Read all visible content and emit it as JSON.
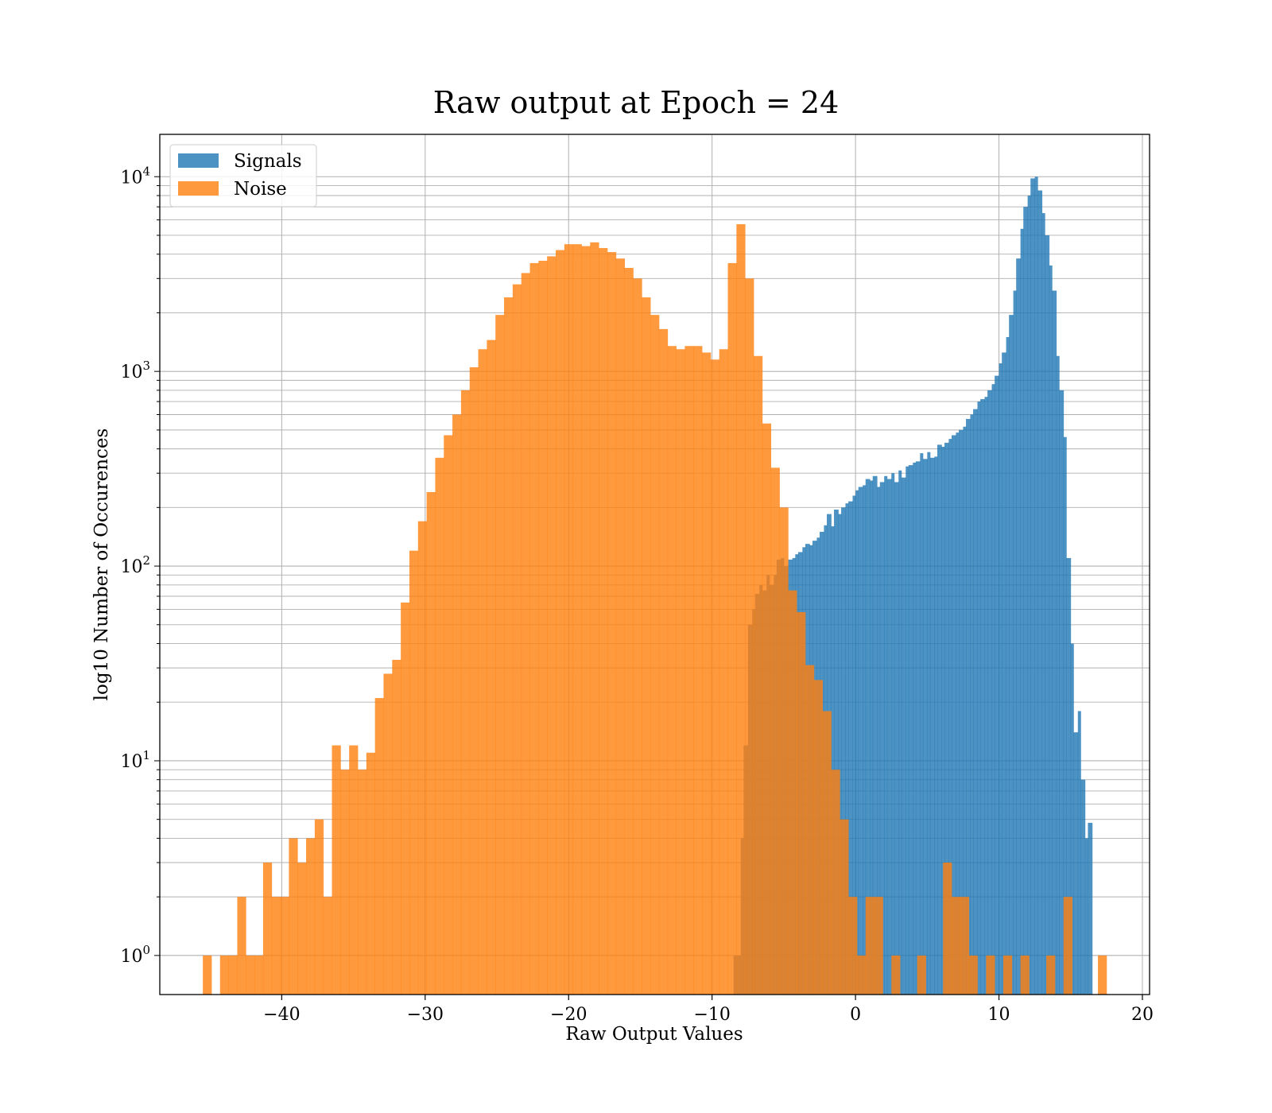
{
  "chart_data": {
    "type": "histogram",
    "title": "Raw output at Epoch = 24",
    "xlabel": "Raw Output Values",
    "ylabel": "log10 Number of Occurences",
    "xlim": [
      -48.5,
      20.5
    ],
    "ylim": [
      0.63,
      16500
    ],
    "yscale": "log",
    "grid": true,
    "legend_position": "upper-left",
    "x_ticks": [
      -40,
      -30,
      -20,
      -10,
      0,
      10,
      20
    ],
    "x_tick_labels": [
      "−40",
      "−30",
      "−20",
      "−10",
      "0",
      "10",
      "20"
    ],
    "y_ticks": [
      {
        "value": 1,
        "base": "10",
        "exp": "0"
      },
      {
        "value": 10,
        "base": "10",
        "exp": "1"
      },
      {
        "value": 100,
        "base": "10",
        "exp": "2"
      },
      {
        "value": 1000,
        "base": "10",
        "exp": "3"
      },
      {
        "value": 10000,
        "base": "10",
        "exp": "4"
      }
    ],
    "series": [
      {
        "name": "Signals",
        "color": "#1f77b4",
        "opacity": 0.8,
        "bins": [
          [
            -8.5,
            -8.0,
            1
          ],
          [
            -8.0,
            -7.8,
            4
          ],
          [
            -7.8,
            -7.5,
            12
          ],
          [
            -7.5,
            -7.2,
            50
          ],
          [
            -7.2,
            -7.0,
            60
          ],
          [
            -7.0,
            -6.7,
            72
          ],
          [
            -6.7,
            -6.5,
            80
          ],
          [
            -6.5,
            -6.2,
            75
          ],
          [
            -6.2,
            -6.0,
            90
          ],
          [
            -6.0,
            -5.7,
            80
          ],
          [
            -5.7,
            -5.5,
            90
          ],
          [
            -5.5,
            -5.2,
            108
          ],
          [
            -5.2,
            -5.0,
            110
          ],
          [
            -5.0,
            -4.7,
            100
          ],
          [
            -4.7,
            -4.4,
            108
          ],
          [
            -4.4,
            -4.2,
            110
          ],
          [
            -4.2,
            -4.0,
            115
          ],
          [
            -4.0,
            -3.7,
            118
          ],
          [
            -3.7,
            -3.5,
            125
          ],
          [
            -3.5,
            -3.2,
            130
          ],
          [
            -3.2,
            -3.0,
            128
          ],
          [
            -3.0,
            -2.7,
            135
          ],
          [
            -2.7,
            -2.5,
            140
          ],
          [
            -2.5,
            -2.2,
            150
          ],
          [
            -2.2,
            -2.0,
            162
          ],
          [
            -2.0,
            -1.7,
            185
          ],
          [
            -1.7,
            -1.5,
            160
          ],
          [
            -1.5,
            -1.2,
            195
          ],
          [
            -1.2,
            -1.0,
            185
          ],
          [
            -1.0,
            -0.7,
            200
          ],
          [
            -0.7,
            -0.5,
            210
          ],
          [
            -0.5,
            -0.2,
            215
          ],
          [
            -0.2,
            0.0,
            230
          ],
          [
            0.0,
            0.2,
            245
          ],
          [
            0.2,
            0.5,
            255
          ],
          [
            0.5,
            0.7,
            260
          ],
          [
            0.7,
            1.0,
            280
          ],
          [
            1.0,
            1.2,
            275
          ],
          [
            1.2,
            1.5,
            290
          ],
          [
            1.5,
            1.7,
            255
          ],
          [
            1.7,
            2.0,
            270
          ],
          [
            2.0,
            2.2,
            290
          ],
          [
            2.2,
            2.5,
            280
          ],
          [
            2.5,
            2.7,
            300
          ],
          [
            2.7,
            3.0,
            270
          ],
          [
            3.0,
            3.2,
            310
          ],
          [
            3.2,
            3.5,
            285
          ],
          [
            3.5,
            3.7,
            325
          ],
          [
            3.7,
            4.0,
            330
          ],
          [
            4.0,
            4.2,
            340
          ],
          [
            4.2,
            4.5,
            345
          ],
          [
            4.5,
            4.7,
            380
          ],
          [
            4.7,
            5.0,
            355
          ],
          [
            5.0,
            5.2,
            385
          ],
          [
            5.2,
            5.5,
            360
          ],
          [
            5.5,
            5.7,
            365
          ],
          [
            5.7,
            6.0,
            420
          ],
          [
            6.0,
            6.2,
            410
          ],
          [
            6.2,
            6.5,
            430
          ],
          [
            6.5,
            6.7,
            450
          ],
          [
            6.7,
            7.0,
            470
          ],
          [
            7.0,
            7.2,
            485
          ],
          [
            7.2,
            7.5,
            500
          ],
          [
            7.5,
            7.7,
            520
          ],
          [
            7.7,
            8.0,
            570
          ],
          [
            8.0,
            8.2,
            600
          ],
          [
            8.2,
            8.5,
            640
          ],
          [
            8.5,
            8.7,
            700
          ],
          [
            8.7,
            9.0,
            720
          ],
          [
            9.0,
            9.2,
            740
          ],
          [
            9.2,
            9.5,
            800
          ],
          [
            9.5,
            9.7,
            860
          ],
          [
            9.7,
            10.0,
            950
          ],
          [
            10.0,
            10.2,
            1100
          ],
          [
            10.2,
            10.5,
            1250
          ],
          [
            10.5,
            10.7,
            1500
          ],
          [
            10.7,
            11.0,
            1950
          ],
          [
            11.0,
            11.2,
            2600
          ],
          [
            11.2,
            11.5,
            3800
          ],
          [
            11.5,
            11.7,
            5400
          ],
          [
            11.7,
            12.0,
            7000
          ],
          [
            12.0,
            12.2,
            8000
          ],
          [
            12.2,
            12.5,
            9800
          ],
          [
            12.5,
            12.7,
            10000
          ],
          [
            12.7,
            13.0,
            8500
          ],
          [
            13.0,
            13.2,
            6500
          ],
          [
            13.2,
            13.5,
            5000
          ],
          [
            13.5,
            13.7,
            3500
          ],
          [
            13.7,
            14.0,
            2600
          ],
          [
            14.0,
            14.2,
            1200
          ],
          [
            14.2,
            14.5,
            800
          ],
          [
            14.5,
            14.7,
            460
          ],
          [
            14.7,
            15.0,
            110
          ],
          [
            15.0,
            15.2,
            40
          ],
          [
            15.2,
            15.5,
            14
          ],
          [
            15.5,
            15.7,
            18
          ],
          [
            15.7,
            16.0,
            8
          ],
          [
            16.0,
            16.2,
            4
          ],
          [
            16.2,
            16.5,
            4.8
          ]
        ]
      },
      {
        "name": "Noise",
        "color": "#ff7f0e",
        "opacity": 0.8,
        "bins": [
          [
            -45.5,
            -44.9,
            1
          ],
          [
            -44.9,
            -44.3,
            0
          ],
          [
            -44.3,
            -43.7,
            1
          ],
          [
            -43.7,
            -43.1,
            1
          ],
          [
            -43.1,
            -42.5,
            2
          ],
          [
            -42.5,
            -41.9,
            1
          ],
          [
            -41.9,
            -41.3,
            1
          ],
          [
            -41.3,
            -40.7,
            3
          ],
          [
            -40.7,
            -40.1,
            2
          ],
          [
            -40.1,
            -39.5,
            2
          ],
          [
            -39.5,
            -38.9,
            4
          ],
          [
            -38.9,
            -38.3,
            3
          ],
          [
            -38.3,
            -37.7,
            4
          ],
          [
            -37.7,
            -37.1,
            5
          ],
          [
            -37.1,
            -36.5,
            2
          ],
          [
            -36.5,
            -35.9,
            12
          ],
          [
            -35.9,
            -35.3,
            9
          ],
          [
            -35.3,
            -34.7,
            12
          ],
          [
            -34.7,
            -34.1,
            9
          ],
          [
            -34.1,
            -33.5,
            11
          ],
          [
            -33.5,
            -32.9,
            21
          ],
          [
            -32.9,
            -32.3,
            28
          ],
          [
            -32.3,
            -31.7,
            33
          ],
          [
            -31.7,
            -31.1,
            65
          ],
          [
            -31.1,
            -30.5,
            120
          ],
          [
            -30.5,
            -29.9,
            170
          ],
          [
            -29.9,
            -29.3,
            240
          ],
          [
            -29.3,
            -28.7,
            360
          ],
          [
            -28.7,
            -28.1,
            470
          ],
          [
            -28.1,
            -27.5,
            600
          ],
          [
            -27.5,
            -26.9,
            800
          ],
          [
            -26.9,
            -26.3,
            1050
          ],
          [
            -26.3,
            -25.7,
            1300
          ],
          [
            -25.7,
            -25.1,
            1450
          ],
          [
            -25.1,
            -24.5,
            1950
          ],
          [
            -24.5,
            -23.9,
            2400
          ],
          [
            -23.9,
            -23.3,
            2800
          ],
          [
            -23.3,
            -22.7,
            3200
          ],
          [
            -22.7,
            -22.1,
            3600
          ],
          [
            -22.1,
            -21.5,
            3700
          ],
          [
            -21.5,
            -20.9,
            3900
          ],
          [
            -20.9,
            -20.3,
            4200
          ],
          [
            -20.3,
            -19.7,
            4500
          ],
          [
            -19.7,
            -19.1,
            4500
          ],
          [
            -19.1,
            -18.5,
            4400
          ],
          [
            -18.5,
            -17.9,
            4600
          ],
          [
            -17.9,
            -17.3,
            4300
          ],
          [
            -17.3,
            -16.7,
            4100
          ],
          [
            -16.7,
            -16.1,
            3800
          ],
          [
            -16.1,
            -15.5,
            3400
          ],
          [
            -15.5,
            -14.9,
            3000
          ],
          [
            -14.9,
            -14.3,
            2400
          ],
          [
            -14.3,
            -13.7,
            1950
          ],
          [
            -13.7,
            -13.1,
            1650
          ],
          [
            -13.1,
            -12.5,
            1350
          ],
          [
            -12.5,
            -11.9,
            1300
          ],
          [
            -11.9,
            -11.3,
            1350
          ],
          [
            -11.3,
            -10.7,
            1350
          ],
          [
            -10.7,
            -10.1,
            1250
          ],
          [
            -10.1,
            -9.5,
            1150
          ],
          [
            -9.5,
            -8.9,
            1300
          ],
          [
            -8.9,
            -8.3,
            3600
          ],
          [
            -8.3,
            -7.7,
            5700
          ],
          [
            -7.7,
            -7.1,
            3000
          ],
          [
            -7.1,
            -6.5,
            1200
          ],
          [
            -6.5,
            -5.9,
            540
          ],
          [
            -5.9,
            -5.3,
            320
          ],
          [
            -5.3,
            -4.7,
            200
          ],
          [
            -4.7,
            -4.1,
            75
          ],
          [
            -4.1,
            -3.5,
            58
          ],
          [
            -3.5,
            -2.9,
            31
          ],
          [
            -2.9,
            -2.3,
            26
          ],
          [
            -2.3,
            -1.7,
            18
          ],
          [
            -1.7,
            -1.1,
            9
          ],
          [
            -1.1,
            -0.5,
            5
          ],
          [
            -0.5,
            0.1,
            2
          ],
          [
            0.1,
            0.7,
            1
          ],
          [
            0.7,
            1.3,
            2
          ],
          [
            1.3,
            1.9,
            2
          ],
          [
            1.9,
            2.5,
            0
          ],
          [
            2.5,
            3.1,
            1
          ],
          [
            3.1,
            3.7,
            0
          ],
          [
            3.7,
            4.3,
            0
          ],
          [
            4.3,
            4.9,
            1
          ],
          [
            4.9,
            5.5,
            0
          ],
          [
            5.5,
            6.1,
            0
          ],
          [
            6.1,
            6.7,
            3
          ],
          [
            6.7,
            7.3,
            2
          ],
          [
            7.3,
            7.9,
            2
          ],
          [
            7.9,
            8.5,
            1
          ],
          [
            8.5,
            9.1,
            0
          ],
          [
            9.1,
            9.7,
            1
          ],
          [
            9.7,
            10.3,
            0
          ],
          [
            10.3,
            10.9,
            1
          ],
          [
            10.9,
            11.5,
            0
          ],
          [
            11.5,
            12.1,
            1
          ],
          [
            12.1,
            12.7,
            0
          ],
          [
            12.7,
            13.3,
            0
          ],
          [
            13.3,
            13.9,
            1
          ],
          [
            13.9,
            14.5,
            0
          ],
          [
            14.5,
            15.1,
            2
          ],
          [
            15.1,
            15.7,
            0
          ],
          [
            15.7,
            16.3,
            0
          ],
          [
            16.3,
            16.9,
            0
          ],
          [
            16.9,
            17.5,
            1
          ]
        ]
      }
    ]
  }
}
